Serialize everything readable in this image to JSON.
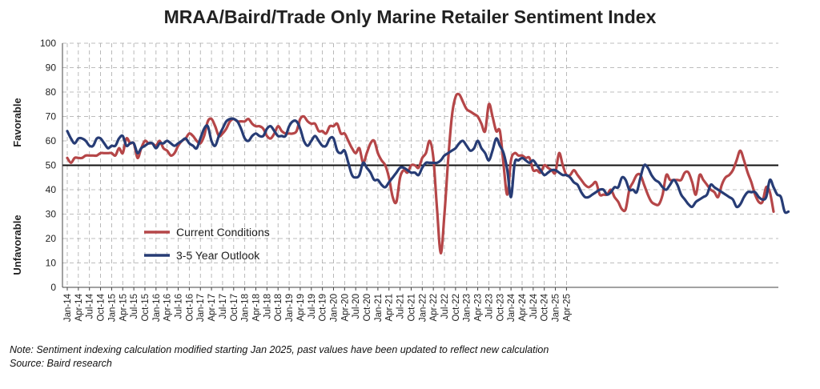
{
  "chart_data": {
    "type": "line",
    "title": "MRAA/Baird/Trade Only Marine Retailer Sentiment Index",
    "ylabel_top": "Favorable",
    "ylabel_bottom": "Unfavorable",
    "ylim": [
      0,
      100
    ],
    "yticks": [
      0,
      10,
      20,
      30,
      40,
      50,
      60,
      70,
      80,
      90,
      100
    ],
    "reference_line": 50,
    "grid": true,
    "legend_position": "lower-left",
    "start": "Jan-14",
    "x_ticks": [
      "Jan-14",
      "Apr-14",
      "Jul-14",
      "Oct-14",
      "Jan-15",
      "Apr-15",
      "Jul-15",
      "Oct-15",
      "Jan-16",
      "Apr-16",
      "Jul-16",
      "Oct-16",
      "Jan-17",
      "Apr-17",
      "Jul-17",
      "Oct-17",
      "Jan-18",
      "Apr-18",
      "Jul-18",
      "Oct-18",
      "Jan-19",
      "Apr-19",
      "Jul-19",
      "Oct-19",
      "Jan-20",
      "Apr-20",
      "Jul-20",
      "Oct-20",
      "Jan-21",
      "Apr-21",
      "Jul-21",
      "Oct-21",
      "Jan-22",
      "Apr-22",
      "Jul-22",
      "Oct-22",
      "Jan-23",
      "Apr-23",
      "Jul-23",
      "Oct-23",
      "Jan-24",
      "Apr-24",
      "Jul-24",
      "Oct-24",
      "Jan-25",
      "Apr-25"
    ],
    "series": [
      {
        "name": "Current Conditions",
        "color": "#b54648",
        "values": [
          53,
          51,
          53,
          53,
          53,
          54,
          54,
          54,
          54,
          55,
          55,
          55,
          55,
          54,
          57,
          55,
          61,
          59,
          59,
          53,
          57,
          60,
          59,
          59,
          58,
          60,
          57,
          56,
          54,
          55,
          58,
          60,
          61,
          63,
          62,
          60,
          59,
          62,
          68,
          69,
          66,
          62,
          63,
          65,
          68,
          69,
          68,
          68,
          68,
          69,
          67,
          66,
          66,
          65,
          62,
          61,
          63,
          66,
          64,
          63,
          63,
          63,
          64,
          69,
          70,
          68,
          67,
          67,
          64,
          64,
          63,
          66,
          66,
          67,
          63,
          63,
          60,
          57,
          55,
          57,
          51,
          55,
          59,
          60,
          55,
          52,
          50,
          45,
          37,
          35,
          45,
          48,
          47,
          50,
          50,
          49,
          53,
          55,
          60,
          53,
          32,
          14,
          30,
          52,
          70,
          78,
          79,
          76,
          73,
          72,
          71,
          70,
          67,
          64,
          75,
          70,
          64,
          64,
          50,
          38,
          52,
          55,
          54,
          54,
          53,
          53,
          48,
          48,
          47,
          50,
          49,
          48,
          47,
          55,
          50,
          46,
          46,
          48,
          46,
          44,
          42,
          41,
          42,
          43,
          38,
          38,
          38,
          40,
          37,
          35,
          32,
          32,
          40,
          43,
          46,
          46,
          42,
          38,
          35,
          34,
          34,
          38,
          46,
          44,
          44,
          44,
          44,
          47,
          47,
          43,
          38,
          46,
          44,
          42,
          40,
          39,
          37,
          42,
          45,
          46,
          48,
          52,
          56,
          52,
          47,
          43,
          38,
          35,
          35,
          41,
          39,
          31
        ]
      },
      {
        "name": "3-5 Year Outlook",
        "color": "#273c75",
        "values": [
          64,
          61,
          59,
          61,
          61,
          60,
          58,
          58,
          61,
          61,
          59,
          57,
          58,
          58,
          61,
          62,
          58,
          59,
          59,
          55,
          57,
          58,
          59,
          59,
          57,
          59,
          59,
          60,
          59,
          58,
          59,
          60,
          61,
          59,
          58,
          57,
          61,
          65,
          66,
          60,
          58,
          62,
          65,
          68,
          69,
          69,
          68,
          65,
          61,
          60,
          62,
          63,
          62,
          62,
          65,
          66,
          64,
          62,
          62,
          62,
          66,
          68,
          68,
          65,
          60,
          58,
          60,
          62,
          60,
          58,
          58,
          61,
          61,
          56,
          55,
          56,
          51,
          46,
          45,
          46,
          51,
          49,
          47,
          44,
          44,
          42,
          41,
          43,
          45,
          47,
          49,
          49,
          48,
          47,
          47,
          46,
          49,
          51,
          51,
          51,
          51,
          52,
          54,
          55,
          56,
          57,
          59,
          60,
          58,
          56,
          57,
          60,
          57,
          55,
          52,
          56,
          61,
          58,
          55,
          48,
          37,
          51,
          52,
          53,
          52,
          51,
          52,
          50,
          48,
          46,
          47,
          48,
          48,
          47,
          46,
          46,
          45,
          43,
          42,
          39,
          37,
          37,
          38,
          39,
          40,
          40,
          38,
          39,
          41,
          41,
          45,
          44,
          40,
          40,
          39,
          45,
          50,
          49,
          46,
          44,
          43,
          41,
          40,
          42,
          44,
          42,
          38,
          36,
          34,
          33,
          35,
          36,
          37,
          38,
          42,
          41,
          40,
          39,
          38,
          37,
          36,
          33,
          34,
          37,
          39,
          39,
          39,
          37,
          36,
          37,
          44,
          41,
          38,
          37,
          31,
          31
        ]
      }
    ]
  },
  "footnote": {
    "note": "Note: Sentiment indexing calculation modified  starting Jan 2025, past values have been updated to reflect new calculation",
    "source": "Source: Baird research"
  }
}
